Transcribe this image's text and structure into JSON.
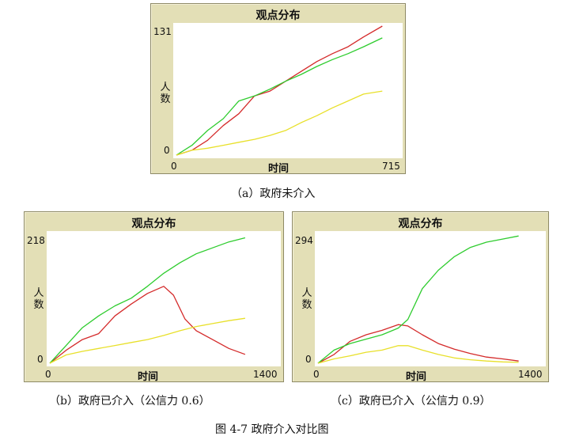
{
  "figure_caption": "图 4-7  政府介入对比图",
  "colors": {
    "red": "#d42a2a",
    "green": "#2ecc2e",
    "yellow": "#e8e02a"
  },
  "panels": [
    {
      "title": "观点分布",
      "xlabel": "时间",
      "ylabel": "人数",
      "xmin_label": "0",
      "xmax_label": "715",
      "ymin_label": "0",
      "ymax_label": "131",
      "caption": "（a）政府未介入"
    },
    {
      "title": "观点分布",
      "xlabel": "时间",
      "ylabel": "人数",
      "xmin_label": "0",
      "xmax_label": "1400",
      "ymin_label": "0",
      "ymax_label": "218",
      "caption": "（b）政府已介入（公信力 0.6）"
    },
    {
      "title": "观点分布",
      "xlabel": "时间",
      "ylabel": "人数",
      "xmin_label": "0",
      "xmax_label": "1400",
      "ymin_label": "0",
      "ymax_label": "294",
      "caption": "（c）政府已介入（公信力 0.9）"
    }
  ],
  "chart_data": [
    {
      "type": "line",
      "title": "观点分布",
      "xlabel": "时间",
      "ylabel": "人数",
      "xlim": [
        0,
        715
      ],
      "ylim": [
        0,
        131
      ],
      "series": [
        {
          "color": "red",
          "x": [
            0,
            50,
            100,
            150,
            200,
            250,
            300,
            350,
            400,
            450,
            500,
            550,
            600,
            660
          ],
          "y": [
            0,
            5,
            15,
            30,
            42,
            60,
            65,
            75,
            85,
            95,
            103,
            110,
            120,
            131
          ]
        },
        {
          "color": "green",
          "x": [
            0,
            50,
            100,
            150,
            200,
            250,
            300,
            350,
            400,
            450,
            500,
            550,
            600,
            660
          ],
          "y": [
            0,
            10,
            25,
            37,
            55,
            60,
            67,
            75,
            82,
            90,
            97,
            103,
            110,
            119
          ]
        },
        {
          "color": "yellow",
          "x": [
            0,
            50,
            100,
            150,
            200,
            250,
            300,
            350,
            400,
            450,
            500,
            550,
            600,
            660
          ],
          "y": [
            0,
            5,
            7,
            10,
            13,
            16,
            20,
            25,
            33,
            40,
            48,
            55,
            62,
            65
          ]
        }
      ]
    },
    {
      "type": "line",
      "title": "观点分布",
      "xlabel": "时间",
      "ylabel": "人数",
      "xlim": [
        0,
        1400
      ],
      "ylim": [
        0,
        218
      ],
      "series": [
        {
          "color": "red",
          "x": [
            0,
            100,
            200,
            300,
            400,
            500,
            600,
            700,
            760,
            830,
            900,
            1000,
            1100,
            1200
          ],
          "y": [
            0,
            22,
            40,
            50,
            80,
            100,
            118,
            130,
            115,
            75,
            55,
            40,
            25,
            15
          ]
        },
        {
          "color": "green",
          "x": [
            0,
            100,
            200,
            300,
            400,
            500,
            600,
            700,
            800,
            900,
            1000,
            1100,
            1200
          ],
          "y": [
            0,
            30,
            60,
            80,
            97,
            110,
            130,
            152,
            170,
            185,
            195,
            205,
            212
          ]
        },
        {
          "color": "yellow",
          "x": [
            0,
            100,
            200,
            300,
            400,
            500,
            600,
            700,
            800,
            900,
            1000,
            1100,
            1200
          ],
          "y": [
            0,
            14,
            20,
            25,
            30,
            35,
            40,
            47,
            55,
            62,
            67,
            72,
            76
          ]
        }
      ]
    },
    {
      "type": "line",
      "title": "观点分布",
      "xlabel": "时间",
      "ylabel": "人数",
      "xlim": [
        0,
        1400
      ],
      "ylim": [
        0,
        294
      ],
      "series": [
        {
          "color": "red",
          "x": [
            0,
            100,
            200,
            300,
            400,
            500,
            560,
            650,
            750,
            850,
            950,
            1050,
            1150,
            1250
          ],
          "y": [
            0,
            20,
            50,
            65,
            75,
            88,
            85,
            65,
            45,
            32,
            22,
            14,
            10,
            5
          ]
        },
        {
          "color": "green",
          "x": [
            0,
            100,
            200,
            300,
            400,
            500,
            560,
            650,
            750,
            850,
            950,
            1050,
            1150,
            1250
          ],
          "y": [
            0,
            30,
            45,
            55,
            65,
            80,
            100,
            170,
            212,
            243,
            264,
            276,
            283,
            290
          ]
        },
        {
          "color": "yellow",
          "x": [
            0,
            100,
            200,
            300,
            400,
            500,
            560,
            650,
            750,
            850,
            950,
            1050,
            1150,
            1250
          ],
          "y": [
            0,
            10,
            17,
            25,
            30,
            40,
            40,
            30,
            20,
            12,
            8,
            5,
            3,
            2
          ]
        }
      ]
    }
  ]
}
